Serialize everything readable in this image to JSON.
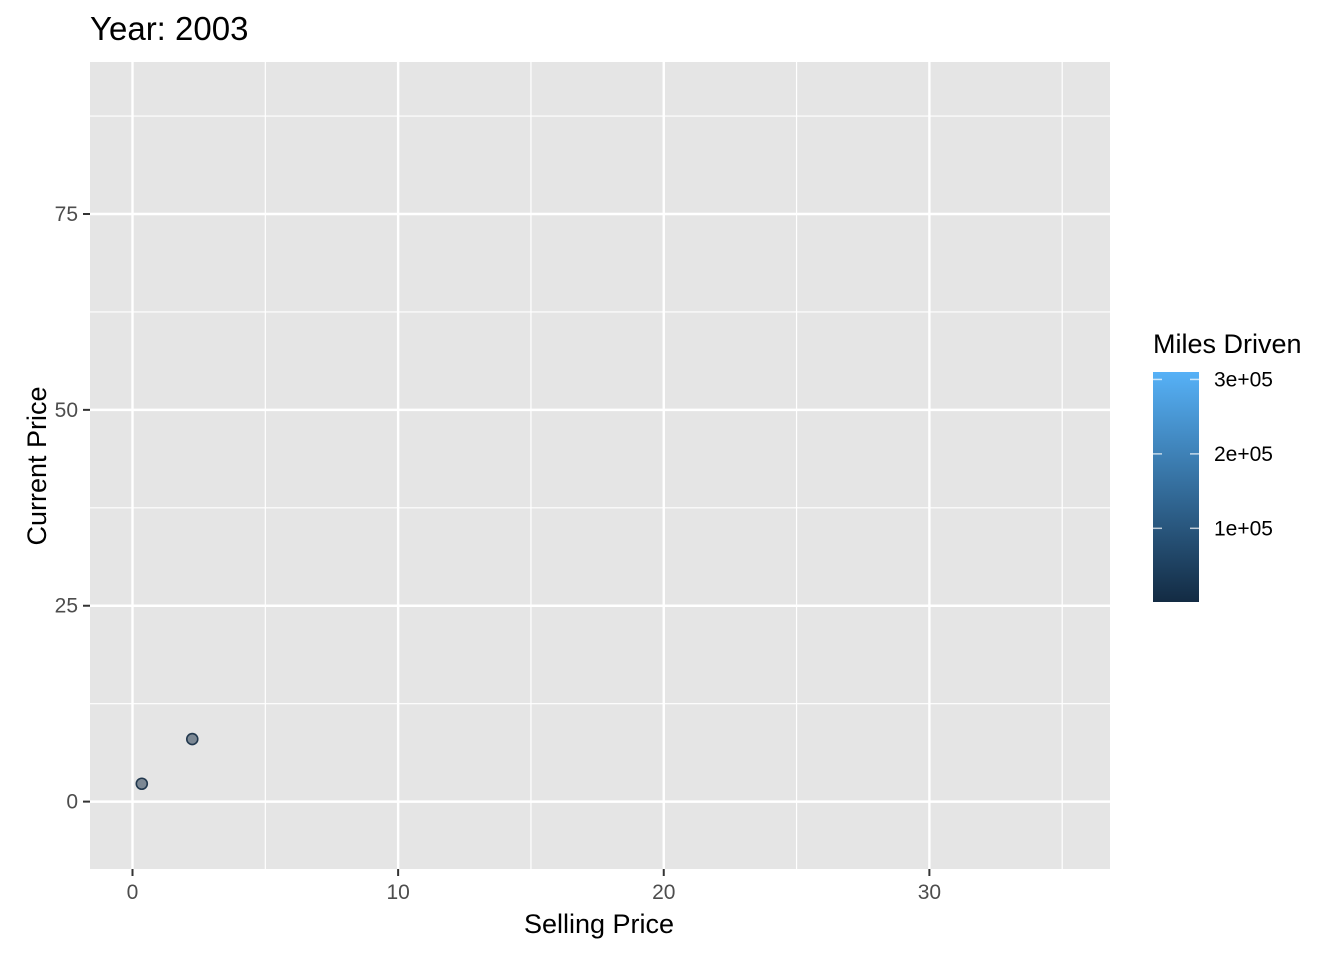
{
  "chart_data": {
    "type": "scatter",
    "title": "Year: 2003",
    "xlabel": "Selling Price",
    "ylabel": "Current Price",
    "xlim": [
      -1.6,
      36.8
    ],
    "ylim": [
      -8.6,
      94.4
    ],
    "x_ticks": [
      0,
      10,
      20,
      30
    ],
    "x_tick_labels": [
      "0",
      "10",
      "20",
      "30"
    ],
    "y_ticks": [
      0,
      25,
      50,
      75
    ],
    "y_tick_labels": [
      "0",
      "25",
      "50",
      "75"
    ],
    "x_minor_ticks": [
      5,
      15,
      25,
      35
    ],
    "y_minor_ticks": [
      12.5,
      37.5,
      62.5,
      87.5
    ],
    "grid": true,
    "panel_background": "#e5e5e5",
    "point_alpha": 0.5,
    "points": [
      {
        "x": 0.35,
        "y": 2.28,
        "miles": 1000
      },
      {
        "x": 2.25,
        "y": 7.98,
        "miles": 1000
      }
    ],
    "legend": {
      "title": "Miles Driven",
      "placement": "right",
      "type": "colorbar",
      "range": [
        1000,
        310000
      ],
      "low_color": "#132b43",
      "high_color": "#56b1f7",
      "breaks": [
        100000,
        200000,
        300000
      ],
      "break_labels": [
        "1e+05",
        "2e+05",
        "3e+05"
      ]
    }
  }
}
